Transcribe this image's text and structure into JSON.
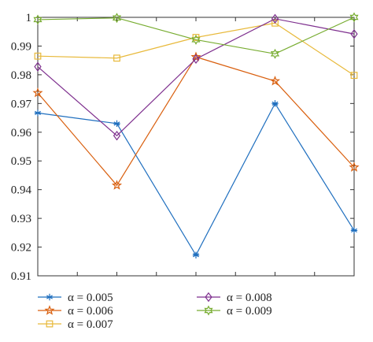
{
  "chart_data": {
    "type": "line",
    "x": [
      1,
      2,
      3,
      4,
      5
    ],
    "xlim": [
      1,
      5
    ],
    "ylim": [
      0.91,
      1.0
    ],
    "yticks": [
      0.91,
      0.92,
      0.93,
      0.94,
      0.95,
      0.96,
      0.97,
      0.98,
      0.99,
      1
    ],
    "ytick_labels": [
      "0.91",
      "0.92",
      "0.93",
      "0.94",
      "0.95",
      "0.96",
      "0.97",
      "0.98",
      "0.99",
      "1"
    ],
    "xticks": [
      1,
      1.5,
      2,
      2.5,
      3,
      3.5,
      4,
      4.5,
      5
    ],
    "grid": false,
    "legend_position": "bottom",
    "series": [
      {
        "name": "α = 0.005",
        "color": "#1f6fbf",
        "marker": "asterisk",
        "values": [
          0.9667,
          0.963,
          0.9172,
          0.97,
          0.9258
        ]
      },
      {
        "name": "α = 0.006",
        "color": "#d95f0e",
        "marker": "star",
        "values": [
          0.9737,
          0.9415,
          0.9862,
          0.9778,
          0.9478
        ]
      },
      {
        "name": "α = 0.007",
        "color": "#e8b93a",
        "marker": "square",
        "values": [
          0.9865,
          0.9858,
          0.993,
          0.998,
          0.9798
        ]
      },
      {
        "name": "α = 0.008",
        "color": "#7e2f8e",
        "marker": "diamond",
        "values": [
          0.9828,
          0.9588,
          0.9855,
          0.9995,
          0.9942
        ]
      },
      {
        "name": "α = 0.009",
        "color": "#77ac30",
        "marker": "hexagram",
        "values": [
          0.9992,
          0.9998,
          0.9922,
          0.9873,
          1.0
        ]
      }
    ]
  }
}
